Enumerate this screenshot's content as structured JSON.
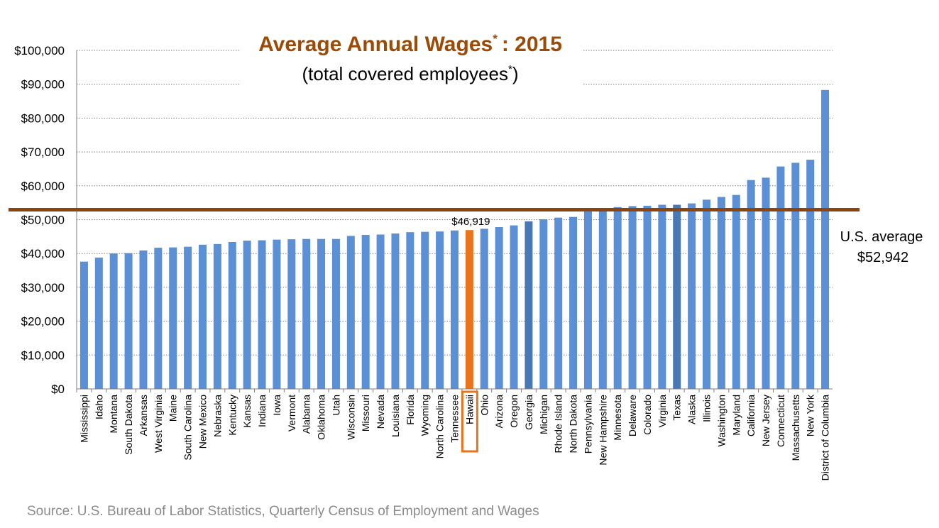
{
  "chart_data": {
    "type": "bar",
    "title": "Average Annual Wages",
    "title_year": ": 2015",
    "subtitle": "(total covered employees",
    "subtitle_end": ")",
    "footnote_mark": "*",
    "ylim": [
      0,
      100000
    ],
    "yticks": [
      "$0",
      "$10,000",
      "$20,000",
      "$30,000",
      "$40,000",
      "$50,000",
      "$60,000",
      "$70,000",
      "$80,000",
      "$90,000",
      "$100,000"
    ],
    "grid": true,
    "categories": [
      "Mississippi",
      "Idaho",
      "Montana",
      "South Dakota",
      "Arkansas",
      "West Virginia",
      "Maine",
      "South Carolina",
      "New Mexico",
      "Nebraska",
      "Kentucky",
      "Kansas",
      "Indiana",
      "Iowa",
      "Vermont",
      "Alabama",
      "Oklahoma",
      "Utah",
      "Wisconsin",
      "Missouri",
      "Nevada",
      "Louisiana",
      "Florida",
      "Wyoming",
      "North Carolina",
      "Tennessee",
      "Hawaii",
      "Ohio",
      "Arizona",
      "Oregon",
      "Georgia",
      "Michigan",
      "Rhode Island",
      "North Dakota",
      "Pennsylvania",
      "New Hampshire",
      "Minnesota",
      "Delaware",
      "Colorado",
      "Virginia",
      "Texas",
      "Alaska",
      "Illinois",
      "Washington",
      "Maryland",
      "California",
      "New Jersey",
      "Connecticut",
      "Massachusetts",
      "New York",
      "District of Columbia"
    ],
    "values": [
      37600,
      38800,
      40000,
      40100,
      40900,
      41700,
      41800,
      42000,
      42600,
      42800,
      43400,
      43800,
      43900,
      44100,
      44200,
      44300,
      44300,
      44300,
      45200,
      45500,
      45600,
      45900,
      46300,
      46400,
      46500,
      46800,
      46919,
      47300,
      47800,
      48300,
      49500,
      50100,
      50600,
      50800,
      52400,
      52800,
      53700,
      54000,
      54100,
      54400,
      54400,
      54800,
      55900,
      56700,
      57300,
      61700,
      62400,
      65700,
      66800,
      67700,
      88300
    ],
    "highlight": "Hawaii",
    "highlight_label": "$46,919",
    "reference_line": {
      "value": 52942,
      "label_line1": "U.S. average",
      "label_line2": "$52,942"
    },
    "source": "Source: U.S. Bureau of Labor Statistics, Quarterly Census of Employment and Wages",
    "colors": {
      "bar": "#5b8fd6",
      "bar_dark": "#4a78b5",
      "highlight": "#e8741c",
      "reference_line": "#8b4513",
      "title": "#9c4a08",
      "grid": "#808080",
      "source": "#8c8c8c"
    }
  }
}
